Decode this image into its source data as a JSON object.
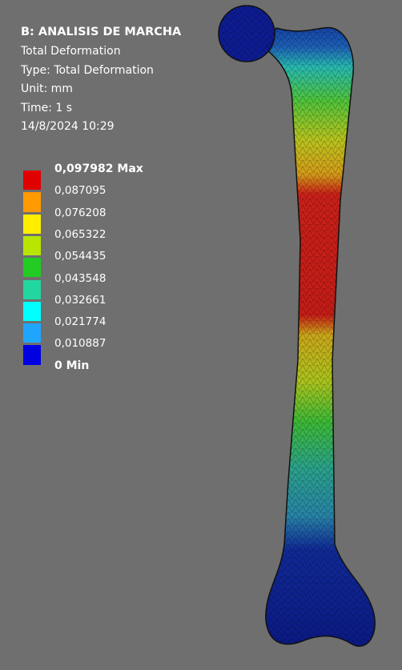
{
  "header": {
    "title": "B: ANALISIS DE MARCHA",
    "lines": [
      "Total Deformation",
      "Type: Total Deformation",
      "Unit: mm",
      "Time: 1 s",
      "14/8/2024 10:29"
    ]
  },
  "legend": {
    "labels": [
      "0,097982 Max",
      "0,087095",
      "0,076208",
      "0,065322",
      "0,054435",
      "0,043548",
      "0,032661",
      "0,021774",
      "0,010887",
      "0 Min"
    ]
  }
}
